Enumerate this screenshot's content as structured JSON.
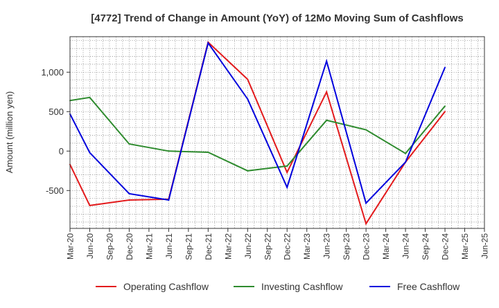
{
  "chart_data": {
    "type": "line",
    "title": "[4772]  Trend of Change in Amount (YoY) of 12Mo Moving Sum of Cashflows",
    "xlabel": "",
    "ylabel": "Amount (million yen)",
    "ylim": [
      -980,
      1450
    ],
    "yticks": [
      -500,
      0,
      500,
      1000
    ],
    "ytick_labels": [
      "-500",
      "0",
      "500",
      "1,000"
    ],
    "categories": [
      "Mar-20",
      "Jun-20",
      "Sep-20",
      "Dec-20",
      "Mar-21",
      "Jun-21",
      "Sep-21",
      "Dec-21",
      "Mar-22",
      "Jun-22",
      "Sep-22",
      "Dec-22",
      "Mar-23",
      "Jun-23",
      "Sep-23",
      "Dec-23",
      "Mar-24",
      "Jun-24",
      "Sep-24",
      "Dec-24",
      "Mar-25",
      "Jun-25"
    ],
    "series": [
      {
        "name": "Operating Cashflow",
        "color": "#e31a1c",
        "values": [
          -170,
          -690,
          null,
          -620,
          null,
          -610,
          null,
          1380,
          null,
          910,
          null,
          -270,
          null,
          750,
          null,
          -920,
          null,
          -140,
          null,
          500,
          null,
          null
        ]
      },
      {
        "name": "Investing Cashflow",
        "color": "#2e8b2e",
        "values": [
          640,
          680,
          null,
          90,
          null,
          0,
          null,
          -15,
          null,
          -250,
          null,
          -190,
          null,
          390,
          null,
          270,
          null,
          -30,
          null,
          570,
          null,
          null
        ]
      },
      {
        "name": "Free Cashflow",
        "color": "#0000dd",
        "values": [
          470,
          -20,
          null,
          -540,
          null,
          -620,
          null,
          1370,
          null,
          660,
          null,
          -460,
          null,
          1140,
          null,
          -660,
          null,
          -140,
          null,
          1060,
          null,
          null
        ]
      }
    ],
    "legend_position": "bottom"
  }
}
